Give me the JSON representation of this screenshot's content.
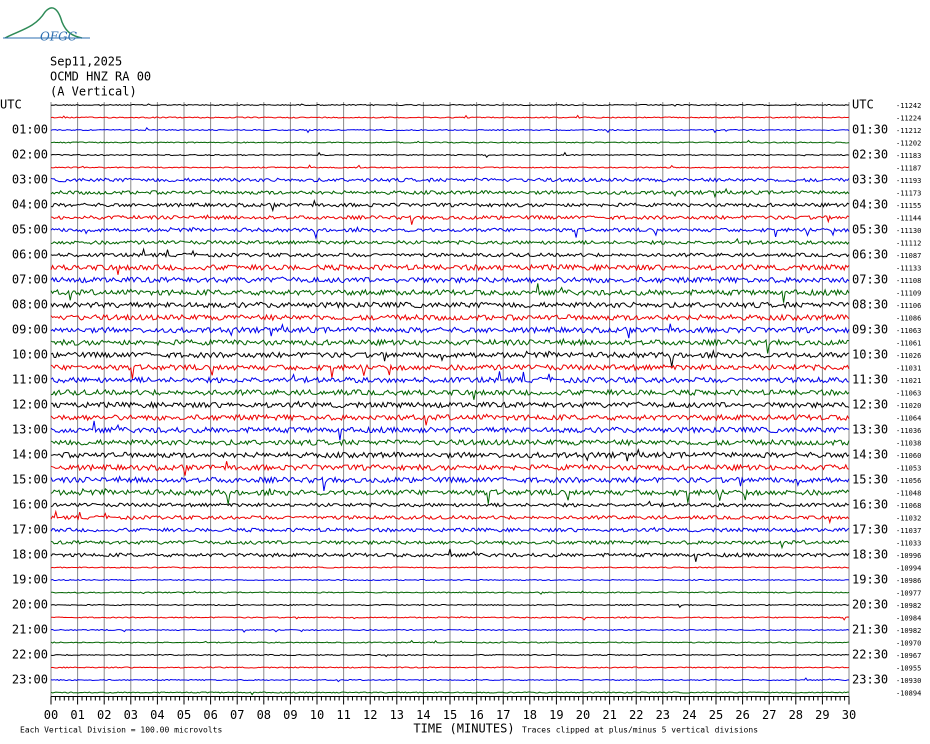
{
  "chart_data": {
    "type": "helicorder",
    "logo": "OFGC",
    "title": "Sep11,2025",
    "station": "OCMD HNZ RA 00",
    "component": "(A Vertical)",
    "left_labels": [
      "UTC",
      "01:00",
      "02:00",
      "03:00",
      "04:00",
      "05:00",
      "06:00",
      "07:00",
      "08:00",
      "09:00",
      "10:00",
      "11:00",
      "12:00",
      "13:00",
      "14:00",
      "15:00",
      "16:00",
      "17:00",
      "18:00",
      "19:00",
      "20:00",
      "21:00",
      "22:00",
      "23:00"
    ],
    "right_labels": [
      "UTC",
      "01:30",
      "02:30",
      "03:30",
      "04:30",
      "05:30",
      "06:30",
      "07:30",
      "08:30",
      "09:30",
      "10:30",
      "11:30",
      "12:30",
      "13:30",
      "14:30",
      "15:30",
      "16:30",
      "17:30",
      "18:30",
      "19:30",
      "20:30",
      "21:30",
      "22:30",
      "23:30"
    ],
    "trace_offsets": [
      -11242,
      -11224,
      -11212,
      -11202,
      -11183,
      -11187,
      -11193,
      -11173,
      -11155,
      -11144,
      -11130,
      -11112,
      -11087,
      -11133,
      -11108,
      -11109,
      -11106,
      -11086,
      -11063,
      -11061,
      -11026,
      -11031,
      -11021,
      -11063,
      -11020,
      -11064,
      -11036,
      -11038,
      -11060,
      -11053,
      -11056,
      -11048,
      -11068,
      -11032,
      -11037,
      -11033,
      -10996,
      -10994,
      -10986,
      -10977,
      -10982,
      -10984,
      -10982,
      -10970,
      -10967,
      -10955,
      -10930,
      -10894
    ],
    "trace_colors": [
      "#000000",
      "#ee0000",
      "#0000ee",
      "#006400"
    ],
    "xlim": [
      0,
      30
    ],
    "xticks": [
      {
        "value": 0,
        "label": "00"
      },
      {
        "value": 1,
        "label": "01"
      },
      {
        "value": 2,
        "label": "02"
      },
      {
        "value": 3,
        "label": "03"
      },
      {
        "value": 4,
        "label": "04"
      },
      {
        "value": 5,
        "label": "05"
      },
      {
        "value": 6,
        "label": "06"
      },
      {
        "value": 7,
        "label": "07"
      },
      {
        "value": 8,
        "label": "08"
      },
      {
        "value": 9,
        "label": "09"
      },
      10,
      11,
      12,
      13,
      14,
      15,
      16,
      17,
      18,
      19,
      20,
      21,
      22,
      23,
      24,
      25,
      26,
      27,
      28,
      29,
      30
    ],
    "grid": true,
    "xlabel": "TIME (MINUTES)",
    "scale_note": "Each Vertical Division =  100.00 microvolts",
    "clip_note": "Traces clipped at plus/minus 5 vertical divisions"
  }
}
